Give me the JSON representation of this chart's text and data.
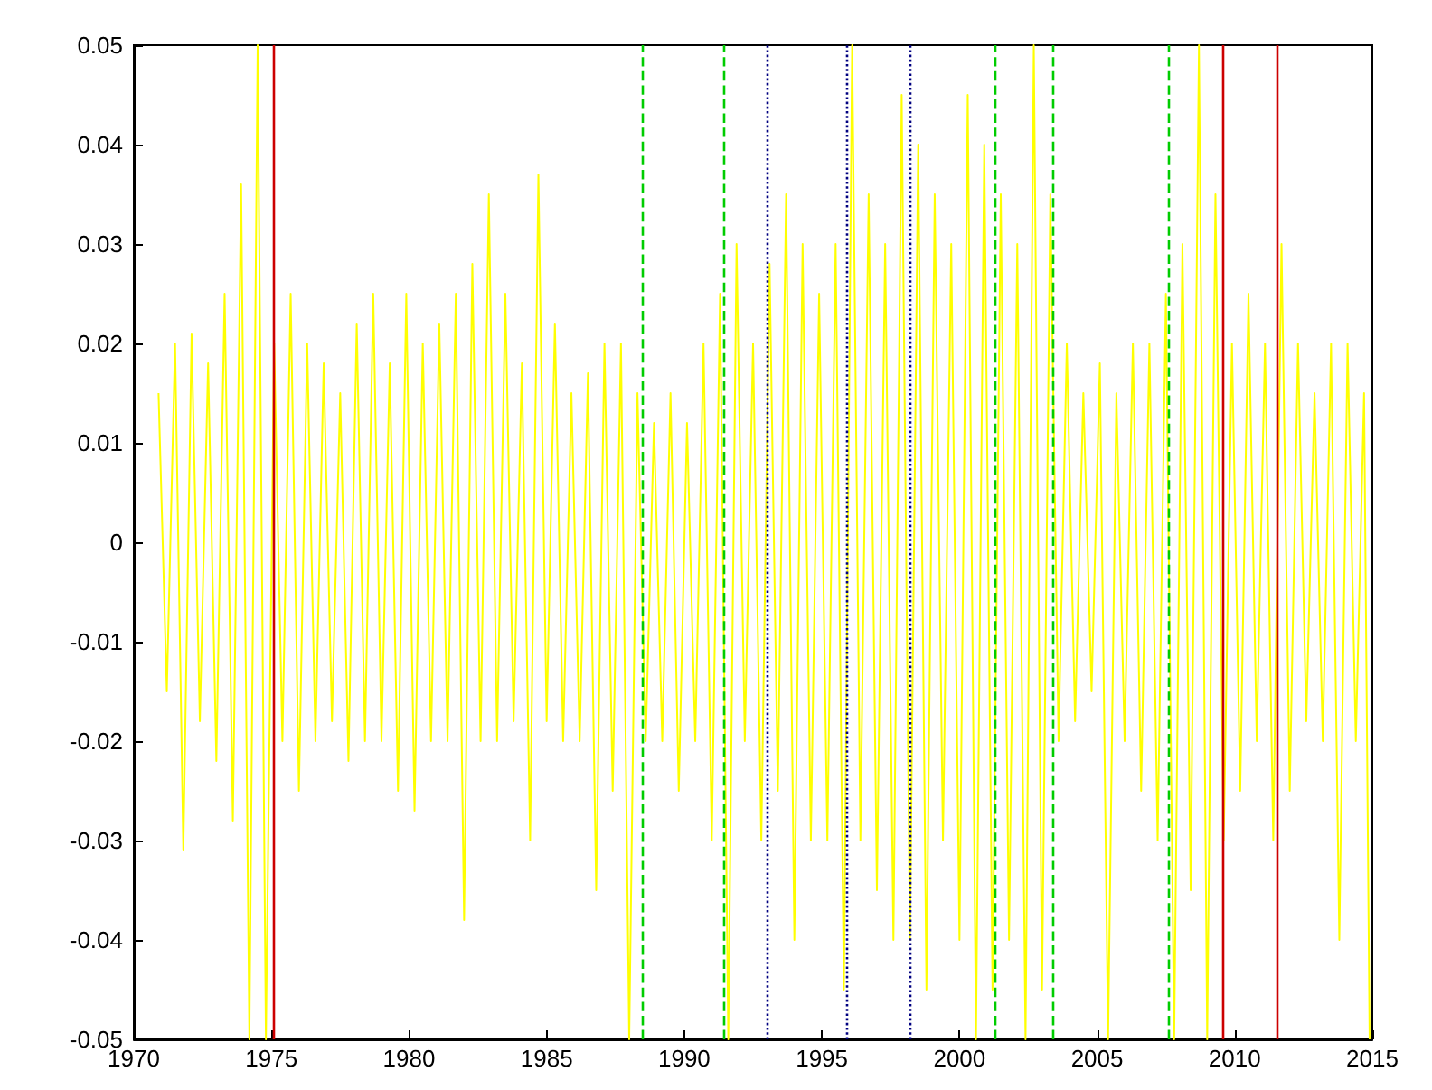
{
  "chart_data": {
    "type": "line",
    "xlim": [
      1970,
      2015
    ],
    "xticks": [
      1970,
      1975,
      1980,
      1985,
      1990,
      1995,
      2000,
      2005,
      2010,
      2015
    ],
    "ylim": [
      -0.05,
      0.05
    ],
    "yticks": [
      -0.05,
      -0.04,
      -0.03,
      -0.02,
      -0.01,
      0,
      0.01,
      0.02,
      0.03,
      0.04,
      0.05
    ],
    "marker": "none",
    "line_style": "solid",
    "series": [
      {
        "color": "#ffff00",
        "x": [
          1970.9,
          1971.2,
          1971.5,
          1971.8,
          1972.1,
          1972.4,
          1972.7,
          1973.0,
          1973.3,
          1973.6,
          1973.9,
          1974.2,
          1974.5,
          1974.8,
          1975.1,
          1975.4,
          1975.7,
          1976.0,
          1976.3,
          1976.6,
          1976.9,
          1977.2,
          1977.5,
          1977.8,
          1978.1,
          1978.4,
          1978.7,
          1979.0,
          1979.3,
          1979.6,
          1979.9,
          1980.2,
          1980.5,
          1980.8,
          1981.1,
          1981.4,
          1981.7,
          1982.0,
          1982.3,
          1982.6,
          1982.9,
          1983.2,
          1983.5,
          1983.8,
          1984.1,
          1984.4,
          1984.7,
          1985.0,
          1985.3,
          1985.6,
          1985.9,
          1986.2,
          1986.5,
          1986.8,
          1987.1,
          1987.4,
          1987.7,
          1988.0,
          1988.3,
          1988.6,
          1988.9,
          1989.2,
          1989.5,
          1989.8,
          1990.1,
          1990.4,
          1990.7,
          1991.0,
          1991.3,
          1991.6,
          1991.9,
          1992.2,
          1992.5,
          1992.8,
          1993.1,
          1993.4,
          1993.7,
          1994.0,
          1994.3,
          1994.6,
          1994.9,
          1995.2,
          1995.5,
          1995.8,
          1996.1,
          1996.4,
          1996.7,
          1997.0,
          1997.3,
          1997.6,
          1997.9,
          1998.2,
          1998.5,
          1998.8,
          1999.1,
          1999.4,
          1999.7,
          2000.0,
          2000.3,
          2000.6,
          2000.9,
          2001.2,
          2001.5,
          2001.8,
          2002.1,
          2002.4,
          2002.7,
          2003.0,
          2003.3,
          2003.6,
          2003.9,
          2004.2,
          2004.5,
          2004.8,
          2005.1,
          2005.4,
          2005.7,
          2006.0,
          2006.3,
          2006.6,
          2006.9,
          2007.2,
          2007.5,
          2007.8,
          2008.1,
          2008.4,
          2008.7,
          2009.0,
          2009.3,
          2009.6,
          2009.9,
          2010.2,
          2010.5,
          2010.8,
          2011.1,
          2011.4,
          2011.7,
          2012.0,
          2012.3,
          2012.6,
          2012.9,
          2013.2,
          2013.5,
          2013.8,
          2014.1,
          2014.4,
          2014.7,
          2014.9
        ],
        "values": [
          0.015,
          -0.015,
          0.02,
          -0.031,
          0.021,
          -0.018,
          0.018,
          -0.022,
          0.025,
          -0.028,
          0.036,
          -0.05,
          0.05,
          -0.05,
          0.02,
          -0.02,
          0.025,
          -0.025,
          0.02,
          -0.02,
          0.018,
          -0.018,
          0.015,
          -0.022,
          0.022,
          -0.02,
          0.025,
          -0.02,
          0.018,
          -0.025,
          0.025,
          -0.027,
          0.02,
          -0.02,
          0.022,
          -0.02,
          0.025,
          -0.038,
          0.028,
          -0.02,
          0.035,
          -0.02,
          0.025,
          -0.018,
          0.018,
          -0.03,
          0.037,
          -0.018,
          0.022,
          -0.02,
          0.015,
          -0.02,
          0.017,
          -0.035,
          0.02,
          -0.025,
          0.02,
          -0.05,
          0.015,
          -0.02,
          0.012,
          -0.02,
          0.015,
          -0.025,
          0.012,
          -0.02,
          0.02,
          -0.03,
          0.025,
          -0.05,
          0.03,
          -0.02,
          0.02,
          -0.03,
          0.028,
          -0.025,
          0.035,
          -0.04,
          0.03,
          -0.03,
          0.025,
          -0.03,
          0.03,
          -0.045,
          0.05,
          -0.03,
          0.035,
          -0.035,
          0.03,
          -0.04,
          0.045,
          -0.04,
          0.04,
          -0.045,
          0.035,
          -0.03,
          0.03,
          -0.04,
          0.045,
          -0.05,
          0.04,
          -0.045,
          0.035,
          -0.04,
          0.03,
          -0.05,
          0.05,
          -0.045,
          0.035,
          -0.02,
          0.02,
          -0.018,
          0.015,
          -0.015,
          0.018,
          -0.05,
          0.015,
          -0.02,
          0.02,
          -0.025,
          0.02,
          -0.03,
          0.025,
          -0.05,
          0.03,
          -0.035,
          0.05,
          -0.05,
          0.035,
          -0.03,
          0.02,
          -0.025,
          0.025,
          -0.02,
          0.02,
          -0.03,
          0.03,
          -0.025,
          0.02,
          -0.018,
          0.015,
          -0.02,
          0.02,
          -0.04,
          0.02,
          -0.02,
          0.015,
          -0.05
        ]
      }
    ],
    "ref_lines": [
      {
        "axis": "x",
        "value": 1975.05,
        "color": "#cc0000",
        "line_style": "solid"
      },
      {
        "axis": "x",
        "value": 1988.5,
        "color": "#00cc00",
        "line_style": "dashed"
      },
      {
        "axis": "x",
        "value": 1991.45,
        "color": "#00cc00",
        "line_style": "dashed"
      },
      {
        "axis": "x",
        "value": 1993.0,
        "color": "#000080",
        "line_style": "dotted"
      },
      {
        "axis": "x",
        "value": 1995.9,
        "color": "#000080",
        "line_style": "dotted"
      },
      {
        "axis": "x",
        "value": 1998.2,
        "color": "#000080",
        "line_style": "dotted"
      },
      {
        "axis": "x",
        "value": 2001.3,
        "color": "#00cc00",
        "line_style": "dashed"
      },
      {
        "axis": "x",
        "value": 2003.4,
        "color": "#00cc00",
        "line_style": "dashed"
      },
      {
        "axis": "x",
        "value": 2007.6,
        "color": "#00cc00",
        "line_style": "dashed"
      },
      {
        "axis": "x",
        "value": 2009.55,
        "color": "#cc0000",
        "line_style": "solid"
      },
      {
        "axis": "x",
        "value": 2011.55,
        "color": "#cc0000",
        "line_style": "solid"
      }
    ]
  }
}
